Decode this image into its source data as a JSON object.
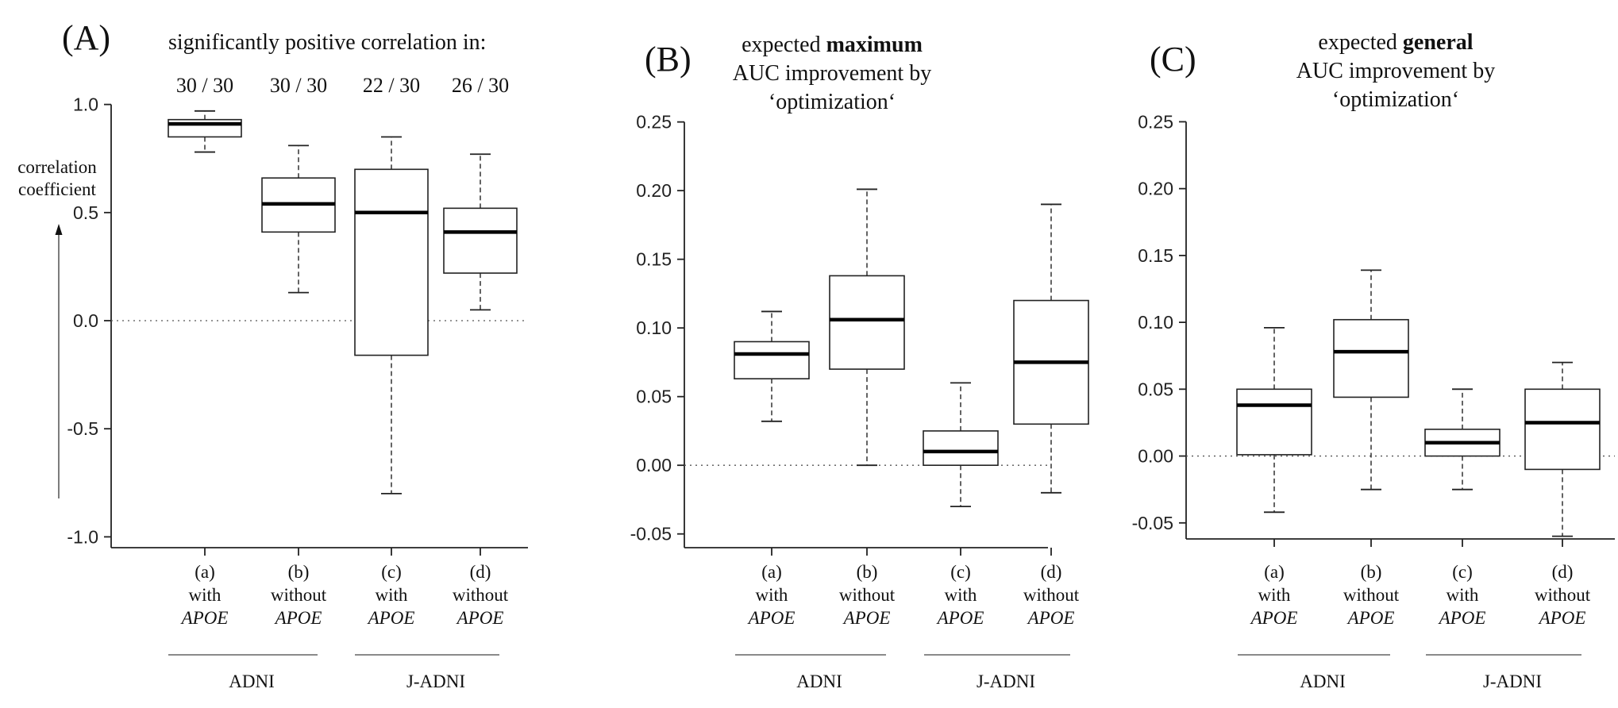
{
  "chart_data": [
    {
      "panel": "(A)",
      "type": "boxplot",
      "title_lines": [
        {
          "parts": [
            {
              "text": "significantly positive correlation in:",
              "bold": false
            }
          ]
        }
      ],
      "counts": [
        "30 / 30",
        "30 / 30",
        "22 / 30",
        "26 / 30"
      ],
      "ylabel_lines": [
        "correlation",
        "coefficient"
      ],
      "ylim": [
        -1.05,
        1.05
      ],
      "yticks": [
        {
          "v": 1.0,
          "label": "1.0"
        },
        {
          "v": 0.5,
          "label": "0.5"
        },
        {
          "v": 0.0,
          "label": "0.0"
        },
        {
          "v": -0.5,
          "label": "-0.5"
        },
        {
          "v": -1.0,
          "label": "-1.0"
        }
      ],
      "reference_line": 0,
      "categories": [
        {
          "code": "(a)",
          "word": "with",
          "gene": "APOE"
        },
        {
          "code": "(b)",
          "word": "without",
          "gene": "APOE"
        },
        {
          "code": "(c)",
          "word": "with",
          "gene": "APOE"
        },
        {
          "code": "(d)",
          "word": "without",
          "gene": "APOE"
        }
      ],
      "groups": [
        "ADNI",
        "J-ADNI"
      ],
      "boxes": [
        {
          "min": 0.78,
          "q1": 0.85,
          "median": 0.91,
          "q3": 0.93,
          "max": 0.97
        },
        {
          "min": 0.13,
          "q1": 0.41,
          "median": 0.54,
          "q3": 0.66,
          "max": 0.81
        },
        {
          "min": -0.8,
          "q1": -0.16,
          "median": 0.5,
          "q3": 0.7,
          "max": 0.85
        },
        {
          "min": 0.05,
          "q1": 0.22,
          "median": 0.41,
          "q3": 0.52,
          "max": 0.77
        }
      ]
    },
    {
      "panel": "(B)",
      "type": "boxplot",
      "title_lines": [
        {
          "parts": [
            {
              "text": "expected ",
              "bold": false
            },
            {
              "text": "maximum",
              "bold": true
            }
          ]
        },
        {
          "parts": [
            {
              "text": "AUC improvement by",
              "bold": false
            }
          ]
        },
        {
          "parts": [
            {
              "text": "‘optimization‘",
              "bold": false
            }
          ]
        }
      ],
      "counts": [],
      "ylabel_lines": [],
      "ylim": [
        -0.06,
        0.255
      ],
      "yticks": [
        {
          "v": 0.25,
          "label": "0.25"
        },
        {
          "v": 0.2,
          "label": "0.20"
        },
        {
          "v": 0.15,
          "label": "0.15"
        },
        {
          "v": 0.1,
          "label": "0.10"
        },
        {
          "v": 0.05,
          "label": "0.05"
        },
        {
          "v": 0.0,
          "label": "0.00"
        },
        {
          "v": -0.05,
          "label": "-0.05"
        }
      ],
      "reference_line": 0,
      "categories": [
        {
          "code": "(a)",
          "word": "with",
          "gene": "APOE"
        },
        {
          "code": "(b)",
          "word": "without",
          "gene": "APOE"
        },
        {
          "code": "(c)",
          "word": "with",
          "gene": "APOE"
        },
        {
          "code": "(d)",
          "word": "without",
          "gene": "APOE"
        }
      ],
      "groups": [
        "ADNI",
        "J-ADNI"
      ],
      "boxes": [
        {
          "min": 0.032,
          "q1": 0.063,
          "median": 0.081,
          "q3": 0.09,
          "max": 0.112
        },
        {
          "min": 0.0,
          "q1": 0.07,
          "median": 0.106,
          "q3": 0.138,
          "max": 0.201
        },
        {
          "min": -0.03,
          "q1": 0.0,
          "median": 0.01,
          "q3": 0.025,
          "max": 0.06
        },
        {
          "min": -0.02,
          "q1": 0.03,
          "median": 0.075,
          "q3": 0.12,
          "max": 0.19
        }
      ]
    },
    {
      "panel": "(C)",
      "type": "boxplot",
      "title_lines": [
        {
          "parts": [
            {
              "text": "expected ",
              "bold": false
            },
            {
              "text": "general",
              "bold": true
            }
          ]
        },
        {
          "parts": [
            {
              "text": "AUC improvement by",
              "bold": false
            }
          ]
        },
        {
          "parts": [
            {
              "text": "‘optimization‘",
              "bold": false
            }
          ]
        }
      ],
      "counts": [],
      "ylabel_lines": [],
      "ylim": [
        -0.062,
        0.255
      ],
      "yticks": [
        {
          "v": 0.25,
          "label": "0.25"
        },
        {
          "v": 0.2,
          "label": "0.20"
        },
        {
          "v": 0.15,
          "label": "0.15"
        },
        {
          "v": 0.1,
          "label": "0.10"
        },
        {
          "v": 0.05,
          "label": "0.05"
        },
        {
          "v": 0.0,
          "label": "0.00"
        },
        {
          "v": -0.05,
          "label": "-0.05"
        }
      ],
      "reference_line": 0,
      "categories": [
        {
          "code": "(a)",
          "word": "with",
          "gene": "APOE"
        },
        {
          "code": "(b)",
          "word": "without",
          "gene": "APOE"
        },
        {
          "code": "(c)",
          "word": "with",
          "gene": "APOE"
        },
        {
          "code": "(d)",
          "word": "without",
          "gene": "APOE"
        }
      ],
      "groups": [
        "ADNI",
        "J-ADNI"
      ],
      "boxes": [
        {
          "min": -0.042,
          "q1": 0.001,
          "median": 0.038,
          "q3": 0.05,
          "max": 0.096
        },
        {
          "min": -0.025,
          "q1": 0.044,
          "median": 0.078,
          "q3": 0.102,
          "max": 0.139
        },
        {
          "min": -0.025,
          "q1": 0.0,
          "median": 0.01,
          "q3": 0.02,
          "max": 0.05
        },
        {
          "min": -0.06,
          "q1": -0.01,
          "median": 0.025,
          "q3": 0.05,
          "max": 0.07
        }
      ]
    }
  ]
}
